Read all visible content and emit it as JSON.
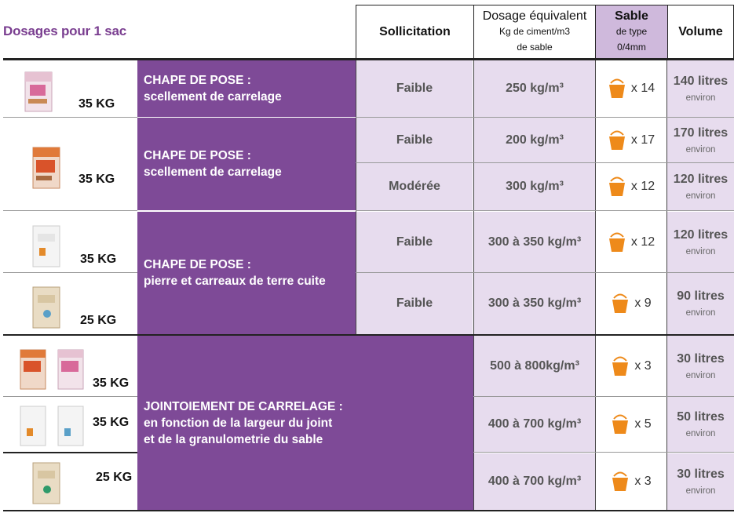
{
  "title": "Dosages pour 1 sac",
  "headers": {
    "sollicitation": "Sollicitation",
    "dosage_line1": "Dosage équivalent",
    "dosage_line2": "Kg de ciment/m3",
    "dosage_line3": "de sable",
    "sable_line1": "Sable",
    "sable_line2": "de type",
    "sable_line3": "0/4mm",
    "volume": "Volume"
  },
  "categories": [
    {
      "line1": "CHAPE DE POSE :",
      "line2": "scellement de carrelage"
    },
    {
      "line1": "CHAPE DE POSE :",
      "line2": "scellement de carrelage"
    },
    {
      "line1": "CHAPE DE POSE :",
      "line2": "pierre et carreaux de terre cuite"
    },
    {
      "line1": "JOINTOIEMENT DE CARRELAGE :",
      "line2": "en fonction de la largeur du joint",
      "line3": "et de la granulometrie du sable"
    }
  ],
  "bags": [
    {
      "weight": "35 KG"
    },
    {
      "weight": "35 KG"
    },
    {
      "weight": "35 KG"
    },
    {
      "weight": "25 KG"
    },
    {
      "weight": "35 KG"
    },
    {
      "weight": "35 KG"
    },
    {
      "weight": "25 KG"
    }
  ],
  "rows": [
    {
      "sollicitation": "Faible",
      "dosage": "250 kg/m³",
      "buckets": "x 14",
      "volume": "140 litres",
      "volume_note": "environ"
    },
    {
      "sollicitation": "Faible",
      "dosage": "200 kg/m³",
      "buckets": "x 17",
      "volume": "170 litres",
      "volume_note": "environ"
    },
    {
      "sollicitation": "Modérée",
      "dosage": "300 kg/m³",
      "buckets": "x 12",
      "volume": "120 litres",
      "volume_note": "environ"
    },
    {
      "sollicitation": "Faible",
      "dosage": "300 à 350 kg/m³",
      "buckets": "x 12",
      "volume": "120 litres",
      "volume_note": "environ"
    },
    {
      "sollicitation": "Faible",
      "dosage": "300 à 350 kg/m³",
      "buckets": "x 9",
      "volume": "90 litres",
      "volume_note": "environ"
    },
    {
      "sollicitation": "",
      "dosage": "500 à 800kg/m³",
      "buckets": "x 3",
      "volume": "30 litres",
      "volume_note": "environ"
    },
    {
      "sollicitation": "",
      "dosage": "400 à 700 kg/m³",
      "buckets": "x 5",
      "volume": "50 litres",
      "volume_note": "environ"
    },
    {
      "sollicitation": "",
      "dosage": "400 à 700 kg/m³",
      "buckets": "x 3",
      "volume": "30 litres",
      "volume_note": "environ"
    }
  ],
  "colors": {
    "purple": "#7e4a97",
    "lavender": "#e7dcee",
    "sable_header": "#cfb9dc",
    "bucket": "#ee8a1a",
    "title": "#7a3e90"
  }
}
